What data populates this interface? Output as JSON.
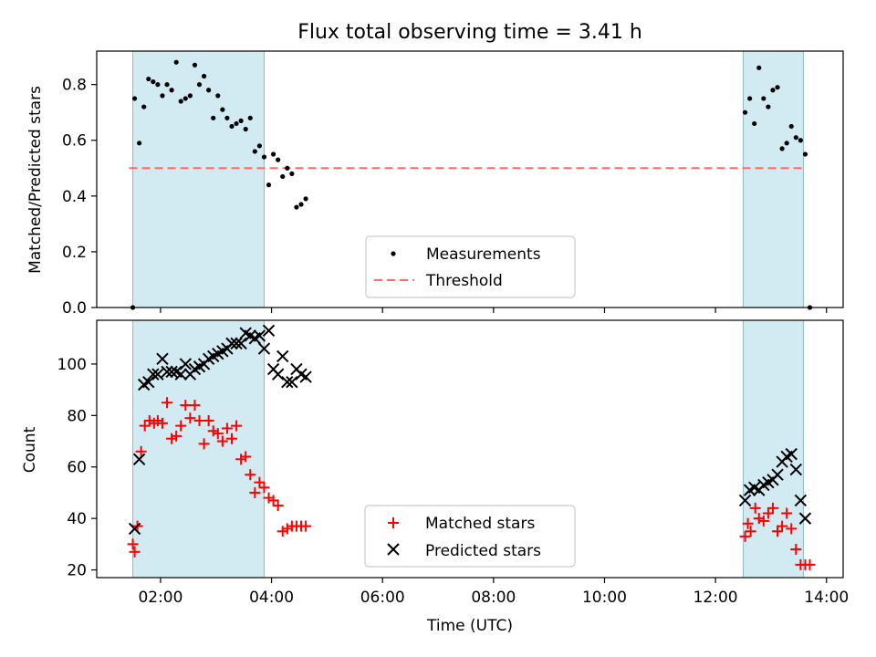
{
  "figure_title": "Flux total observing time = 3.41 h",
  "xlabel": "Time (UTC)",
  "x_ticks": [
    "02:00",
    "04:00",
    "06:00",
    "08:00",
    "10:00",
    "12:00",
    "14:00"
  ],
  "shaded_intervals": [
    [
      "01:30",
      "03:52"
    ],
    [
      "12:30",
      "13:35"
    ]
  ],
  "colors": {
    "shade": "#add8e6",
    "threshold": "#ff6b6b",
    "measurement": "#000000",
    "matched": "#ff0000",
    "predicted": "#000000"
  },
  "chart_data": [
    {
      "type": "scatter",
      "ylabel": "Matched/Predicted stars",
      "ylim": [
        0.0,
        0.92
      ],
      "yticks": [
        "0.0",
        "0.2",
        "0.4",
        "0.6",
        "0.8"
      ],
      "legend": {
        "placement": "lower-center",
        "entries": [
          "Measurements",
          "Threshold"
        ]
      },
      "threshold": 0.5,
      "series": [
        {
          "name": "Measurements",
          "x": [
            "01:30",
            "01:32",
            "01:37",
            "01:42",
            "01:47",
            "01:52",
            "01:57",
            "02:02",
            "02:07",
            "02:12",
            "02:17",
            "02:22",
            "02:27",
            "02:32",
            "02:37",
            "02:42",
            "02:47",
            "02:52",
            "02:57",
            "03:02",
            "03:07",
            "03:12",
            "03:17",
            "03:22",
            "03:27",
            "03:32",
            "03:37",
            "03:42",
            "03:47",
            "03:52",
            "03:57",
            "04:02",
            "04:07",
            "04:12",
            "04:17",
            "04:22",
            "04:27",
            "04:32",
            "04:37",
            "12:32",
            "12:37",
            "12:42",
            "12:47",
            "12:52",
            "12:57",
            "13:02",
            "13:07",
            "13:12",
            "13:17",
            "13:22",
            "13:27",
            "13:32",
            "13:37",
            "13:42"
          ],
          "y": [
            0.0,
            0.75,
            0.59,
            0.72,
            0.82,
            0.81,
            0.8,
            0.76,
            0.8,
            0.78,
            0.88,
            0.74,
            0.75,
            0.76,
            0.87,
            0.8,
            0.83,
            0.78,
            0.68,
            0.76,
            0.71,
            0.68,
            0.65,
            0.66,
            0.67,
            0.64,
            0.68,
            0.56,
            0.58,
            0.54,
            0.44,
            0.55,
            0.53,
            0.47,
            0.5,
            0.48,
            0.36,
            0.37,
            0.39,
            0.7,
            0.75,
            0.66,
            0.86,
            0.75,
            0.72,
            0.78,
            0.79,
            0.57,
            0.59,
            0.65,
            0.61,
            0.6,
            0.55,
            0.0
          ]
        }
      ]
    },
    {
      "type": "scatter",
      "ylabel": "Count",
      "ylim": [
        17,
        117
      ],
      "yticks": [
        "20",
        "40",
        "60",
        "80",
        "100"
      ],
      "legend": {
        "placement": "lower-center",
        "entries": [
          "Matched stars",
          "Predicted stars"
        ]
      },
      "series": [
        {
          "name": "Matched stars",
          "x": [
            "01:30",
            "01:32",
            "01:35",
            "01:39",
            "01:43",
            "01:48",
            "01:53",
            "01:57",
            "02:02",
            "02:07",
            "02:12",
            "02:17",
            "02:22",
            "02:27",
            "02:32",
            "02:37",
            "02:42",
            "02:47",
            "02:52",
            "02:57",
            "03:02",
            "03:07",
            "03:12",
            "03:17",
            "03:22",
            "03:27",
            "03:32",
            "03:37",
            "03:42",
            "03:47",
            "03:52",
            "03:57",
            "04:02",
            "04:07",
            "04:12",
            "04:17",
            "04:22",
            "04:27",
            "04:32",
            "04:37",
            "12:32",
            "12:35",
            "12:38",
            "12:43",
            "12:47",
            "12:52",
            "12:57",
            "13:02",
            "13:07",
            "13:12",
            "13:17",
            "13:22",
            "13:27",
            "13:32",
            "13:37",
            "13:42"
          ],
          "y": [
            30,
            27,
            37,
            66,
            76,
            78,
            77,
            78,
            77,
            85,
            71,
            72,
            76,
            84,
            79,
            84,
            78,
            69,
            78,
            74,
            73,
            70,
            75,
            71,
            76,
            63,
            64,
            57,
            50,
            54,
            52,
            48,
            47,
            45,
            35,
            36,
            37,
            37,
            37,
            37,
            33,
            38,
            35,
            44,
            40,
            39,
            42,
            44,
            35,
            37,
            42,
            36,
            28,
            22,
            22,
            22
          ],
          "y_note": "approx"
        },
        {
          "name": "Predicted stars",
          "x": [
            "01:32",
            "01:37",
            "01:42",
            "01:47",
            "01:52",
            "01:57",
            "02:02",
            "02:07",
            "02:12",
            "02:17",
            "02:22",
            "02:27",
            "02:32",
            "02:37",
            "02:42",
            "02:47",
            "02:52",
            "02:57",
            "03:02",
            "03:07",
            "03:12",
            "03:17",
            "03:22",
            "03:27",
            "03:32",
            "03:37",
            "03:42",
            "03:47",
            "03:52",
            "03:57",
            "04:02",
            "04:07",
            "04:12",
            "04:17",
            "04:22",
            "04:27",
            "04:32",
            "04:37",
            "12:32",
            "12:37",
            "12:42",
            "12:47",
            "12:52",
            "12:57",
            "13:02",
            "13:07",
            "13:12",
            "13:17",
            "13:22",
            "13:27",
            "13:32",
            "13:37"
          ],
          "y": [
            36,
            63,
            92,
            93,
            96,
            96,
            102,
            97,
            97,
            97,
            96,
            100,
            96,
            98,
            99,
            100,
            102,
            103,
            104,
            105,
            106,
            108,
            108,
            108,
            112,
            111,
            110,
            111,
            106,
            113,
            98,
            96,
            103,
            93,
            93,
            98,
            96,
            95,
            47,
            51,
            52,
            51,
            53,
            54,
            55,
            57,
            62,
            64,
            65,
            59,
            47,
            40
          ]
        }
      ]
    }
  ]
}
